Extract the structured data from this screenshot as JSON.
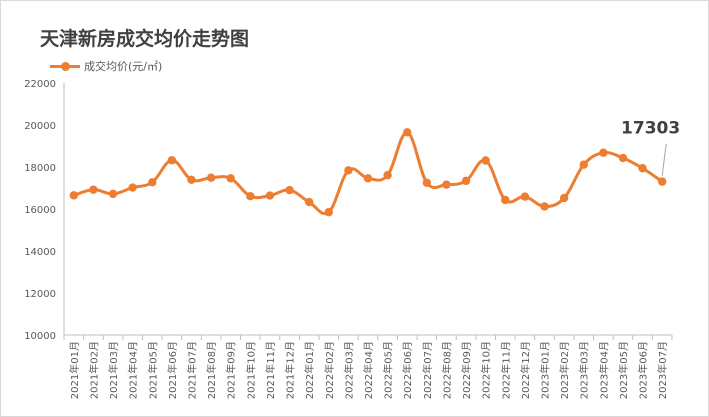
{
  "chart_data": {
    "type": "line",
    "title": "天津新房成交均价走势图",
    "legend": {
      "entries": [
        "成交均价(元/㎡)"
      ],
      "placement": "top-left"
    },
    "categories": [
      "2021年01月",
      "2021年02月",
      "2021年03月",
      "2021年04月",
      "2021年05月",
      "2021年06月",
      "2021年07月",
      "2021年08月",
      "2021年09月",
      "2021年10月",
      "2021年11月",
      "2021年12月",
      "2022年01月",
      "2022年02月",
      "2022年03月",
      "2022年04月",
      "2022年05月",
      "2022年06月",
      "2022年07月",
      "2022年08月",
      "2022年09月",
      "2022年10月",
      "2022年11月",
      "2022年12月",
      "2023年01月",
      "2023年02月",
      "2023年03月",
      "2023年04月",
      "2023年05月",
      "2023年06月",
      "2023年07月"
    ],
    "series": [
      {
        "name": "成交均价(元/㎡)",
        "color": "#ed7d31",
        "values": [
          16650,
          16920,
          16720,
          17020,
          17270,
          18320,
          17390,
          17490,
          17460,
          16610,
          16640,
          16900,
          16330,
          15850,
          17840,
          17460,
          17610,
          19650,
          17250,
          17160,
          17340,
          18310,
          16430,
          16590,
          16120,
          16520,
          18110,
          18680,
          18430,
          17940,
          17303
        ]
      }
    ],
    "ylim": [
      10000,
      22000
    ],
    "yticks": [
      "10000",
      "12000",
      "14000",
      "16000",
      "18000",
      "20000",
      "22000"
    ],
    "grid": false,
    "annotations": [
      {
        "text": "17303",
        "index": 30
      }
    ]
  }
}
